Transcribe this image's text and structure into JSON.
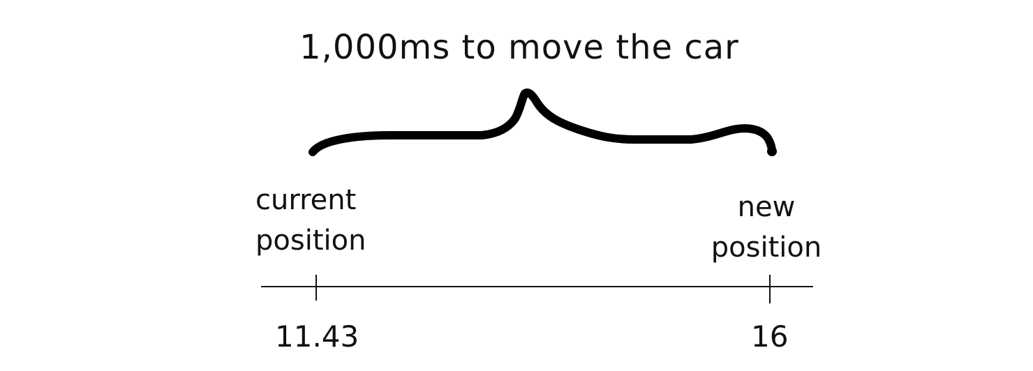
{
  "title": "1,000ms to move the car",
  "start": {
    "label_line1": "current",
    "label_line2": "position",
    "value": "11.43"
  },
  "end": {
    "label_line1": "new",
    "label_line2": "position",
    "value": "16"
  }
}
